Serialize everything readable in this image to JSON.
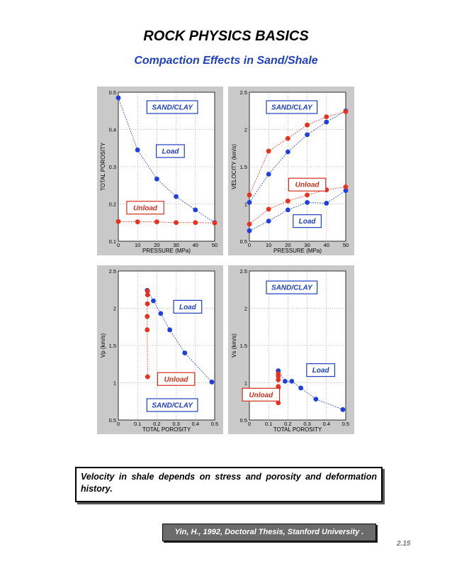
{
  "header": {
    "title": "ROCK PHYSICS BASICS",
    "subtitle": "Compaction Effects in Sand/Shale"
  },
  "colors": {
    "load": "#1f3fdc",
    "unload": "#e8321e",
    "panel_bg": "#c9c9c9"
  },
  "chart_data": [
    {
      "type": "line",
      "xlabel": "PRESSURE (MPa)",
      "ylabel": "TOTAL POROSITY",
      "xlim": [
        0,
        50
      ],
      "ylim": [
        0.1,
        0.5
      ],
      "xticks": [
        "0",
        "10",
        "20",
        "30",
        "40",
        "50"
      ],
      "yticks": [
        "0.1",
        "0.2",
        "0.3",
        "0.4",
        "0.5"
      ],
      "grid": true,
      "series": [
        {
          "name": "Load",
          "color": "load",
          "x": [
            0,
            10,
            20,
            30,
            40,
            50
          ],
          "y": [
            0.485,
            0.345,
            0.267,
            0.22,
            0.184,
            0.15
          ]
        },
        {
          "name": "Unload",
          "color": "unload",
          "x": [
            0,
            10,
            20,
            30,
            40,
            50
          ],
          "y": [
            0.153,
            0.152,
            0.152,
            0.15,
            0.15,
            0.149
          ]
        }
      ],
      "annotations": [
        {
          "text": "SAND/CLAY",
          "style": "blue",
          "x": 28,
          "y": 0.46
        },
        {
          "text": "Load",
          "style": "blue",
          "x": 27,
          "y": 0.342
        },
        {
          "text": "Unload",
          "style": "red",
          "x": 14,
          "y": 0.19
        }
      ]
    },
    {
      "type": "line",
      "xlabel": "PRESSURE (MPa)",
      "ylabel": "VELOCITY (km/s)",
      "xlim": [
        0,
        50
      ],
      "ylim": [
        0.5,
        2.5
      ],
      "xticks": [
        "0",
        "10",
        "20",
        "30",
        "40",
        "50"
      ],
      "yticks": [
        "0.5",
        "1",
        "1.5",
        "2",
        "2.5"
      ],
      "grid": true,
      "series": [
        {
          "name": "Load",
          "color": "load",
          "x": [
            0,
            10,
            20,
            30,
            40,
            50
          ],
          "y": [
            1.02,
            1.4,
            1.7,
            1.93,
            2.1,
            2.25
          ]
        },
        {
          "name": "Unload",
          "color": "unload",
          "x": [
            0,
            10,
            20,
            30,
            40,
            50
          ],
          "y": [
            1.12,
            1.71,
            1.88,
            2.06,
            2.17,
            2.24
          ]
        },
        {
          "name": "Load",
          "color": "load",
          "x": [
            0,
            10,
            20,
            30,
            40,
            50
          ],
          "y": [
            0.64,
            0.77,
            0.92,
            1.02,
            1.01,
            1.18
          ]
        },
        {
          "name": "Unload",
          "color": "unload",
          "x": [
            0,
            10,
            20,
            30,
            40,
            50
          ],
          "y": [
            0.73,
            0.93,
            1.04,
            1.12,
            1.19,
            1.23
          ]
        }
      ],
      "annotations": [
        {
          "text": "SAND/CLAY",
          "style": "blue",
          "x": 22,
          "y": 2.3
        },
        {
          "text": "Unload",
          "style": "red",
          "x": 30,
          "y": 1.26
        },
        {
          "text": "Load",
          "style": "blue",
          "x": 30,
          "y": 0.77
        }
      ]
    },
    {
      "type": "line",
      "xlabel": "TOTAL POROSITY",
      "ylabel": "Vp (km/s)",
      "xlim": [
        0,
        0.5
      ],
      "ylim": [
        0.5,
        2.5
      ],
      "xticks": [
        "0",
        "0.1",
        "0.2",
        "0.3",
        "0.4",
        "0.5"
      ],
      "yticks": [
        "0.5",
        "1",
        "1.5",
        "2",
        "2.5"
      ],
      "grid": true,
      "series": [
        {
          "name": "Load",
          "color": "load",
          "x": [
            0.15,
            0.182,
            0.22,
            0.267,
            0.345,
            0.485
          ],
          "y": [
            2.24,
            2.1,
            1.93,
            1.71,
            1.4,
            1.01
          ]
        },
        {
          "name": "Unload",
          "color": "unload",
          "x": [
            0.152,
            0.152,
            0.151,
            0.15,
            0.15,
            0.152
          ],
          "y": [
            2.23,
            2.18,
            2.06,
            1.89,
            1.71,
            1.08
          ]
        }
      ],
      "annotations": [
        {
          "text": "Load",
          "style": "blue",
          "x": 0.36,
          "y": 2.02
        },
        {
          "text": "Unload",
          "style": "red",
          "x": 0.3,
          "y": 1.05
        },
        {
          "text": "SAND/CLAY",
          "style": "blue",
          "x": 0.28,
          "y": 0.7
        }
      ]
    },
    {
      "type": "line",
      "xlabel": "TOTAL POROSITY",
      "ylabel": "Vs (km/s)",
      "xlim": [
        0,
        0.5
      ],
      "ylim": [
        0.5,
        2.5
      ],
      "xticks": [
        "0",
        "0.1",
        "0.2",
        "0.3",
        "0.4",
        "0.5"
      ],
      "yticks": [
        "0.5",
        "1",
        "1.5",
        "2",
        "2.5"
      ],
      "grid": true,
      "series": [
        {
          "name": "Load",
          "color": "load",
          "x": [
            0.15,
            0.185,
            0.22,
            0.267,
            0.345,
            0.485
          ],
          "y": [
            1.16,
            1.02,
            1.02,
            0.93,
            0.78,
            0.64
          ]
        },
        {
          "name": "Unload",
          "color": "unload",
          "x": [
            0.15,
            0.15,
            0.15,
            0.15,
            0.15,
            0.15
          ],
          "y": [
            1.12,
            1.09,
            1.04,
            0.95,
            0.93,
            0.73
          ]
        }
      ],
      "annotations": [
        {
          "text": "SAND/CLAY",
          "style": "blue",
          "x": 0.22,
          "y": 2.28
        },
        {
          "text": "Load",
          "style": "blue",
          "x": 0.37,
          "y": 1.17
        },
        {
          "text": "Unload",
          "style": "red",
          "x": 0.06,
          "y": 0.84
        }
      ]
    }
  ],
  "note": "Velocity in shale depends on stress and porosity and deformation history.",
  "citation": "Yin, H., 1992, Doctoral Thesis, Stanford University .",
  "page_number": "2.15"
}
